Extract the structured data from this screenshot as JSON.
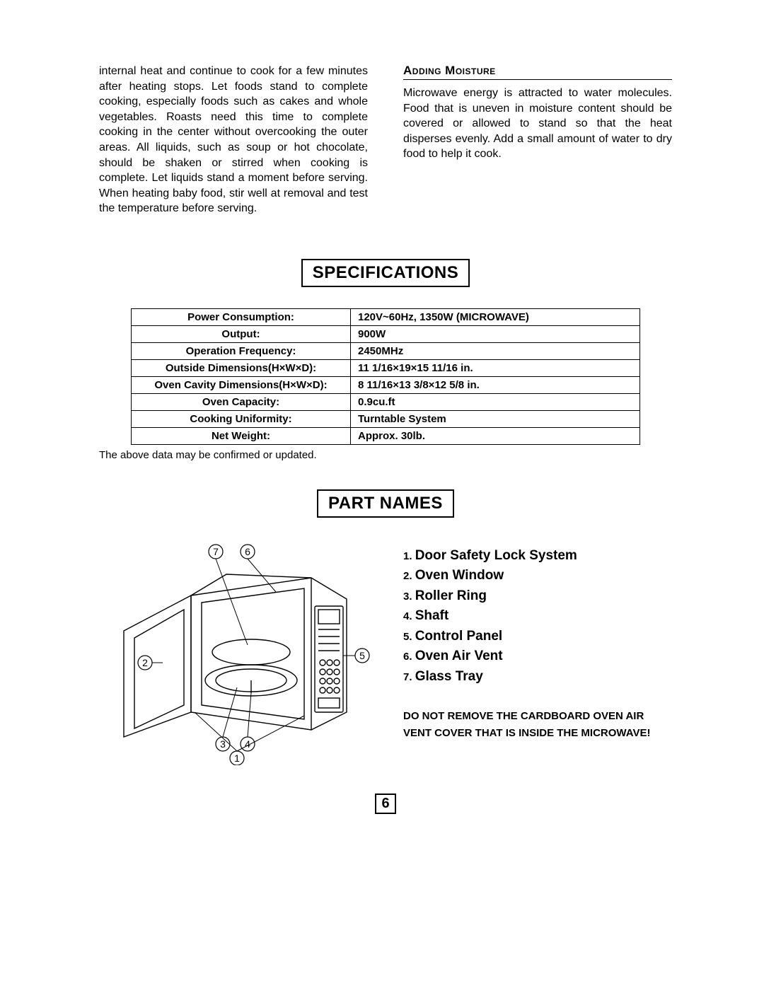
{
  "intro": {
    "left_paragraph": "internal heat and continue to cook for a few minutes after heating stops. Let foods stand to complete cooking, especially foods such as cakes and whole vegetables. Roasts need this time to complete cooking in the center without overcooking the outer areas. All liquids, such as soup or hot chocolate, should be shaken or stirred when cooking is complete. Let liquids stand a moment before serving. When heating baby food, stir well at removal and test the temperature before serving.",
    "right_heading": "Adding Moisture",
    "right_paragraph": "Microwave energy is attracted to water molecules. Food that is uneven in moisture content should be covered or allowed to stand so that the heat disperses evenly. Add a small amount of water to dry food to help it cook."
  },
  "specifications": {
    "title": "SPECIFICATIONS",
    "rows": [
      {
        "label": "Power Consumption:",
        "value": "120V~60Hz, 1350W (MICROWAVE)"
      },
      {
        "label": "Output:",
        "value": "900W"
      },
      {
        "label": "Operation Frequency:",
        "value": "2450MHz"
      },
      {
        "label": "Outside Dimensions(H×W×D):",
        "value": "11 1/16×19×15 11/16   in."
      },
      {
        "label": "Oven Cavity Dimensions(H×W×D):",
        "value": "8 11/16×13 3/8×12 5/8 in."
      },
      {
        "label": "Oven Capacity:",
        "value": "0.9cu.ft"
      },
      {
        "label": "Cooking Uniformity:",
        "value": "Turntable System"
      },
      {
        "label": "Net Weight:",
        "value": "Approx. 30lb."
      }
    ],
    "note": "The above data may be confirmed or updated."
  },
  "part_names": {
    "title": "PART NAMES",
    "items": [
      "Door Safety Lock System",
      "Oven Window",
      "Roller Ring",
      "Shaft",
      "Control Panel",
      "Oven Air Vent",
      "Glass Tray"
    ],
    "warning": "DO NOT REMOVE THE CARDBOARD OVEN AIR VENT COVER THAT IS INSIDE THE MICROWAVE!",
    "callouts": [
      "1",
      "2",
      "3",
      "4",
      "5",
      "6",
      "7"
    ]
  },
  "page_number": "6",
  "colors": {
    "text": "#000000",
    "bg": "#ffffff",
    "border": "#000000"
  }
}
